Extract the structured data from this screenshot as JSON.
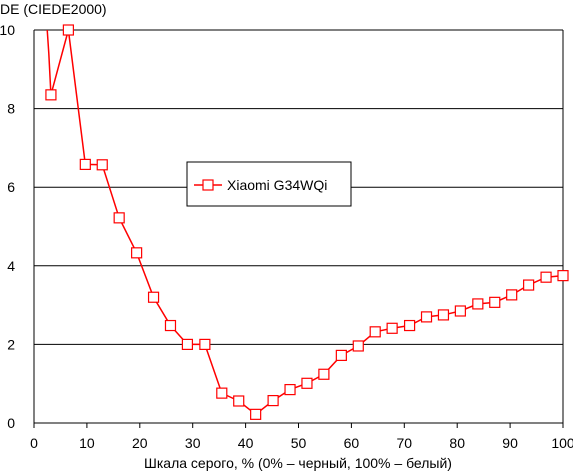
{
  "chart_data": {
    "type": "line",
    "title": "",
    "ylabel": "DE (CIEDE2000)",
    "xlabel": "Шкала серого, % (0% – черный, 100% – белый)",
    "xlim": [
      0,
      100
    ],
    "ylim": [
      0,
      10
    ],
    "xticks": [
      "0",
      "10",
      "20",
      "30",
      "40",
      "50",
      "60",
      "70",
      "80",
      "90",
      "100"
    ],
    "yticks": [
      "0",
      "2",
      "4",
      "6",
      "8",
      "10"
    ],
    "grid": "horizontal",
    "legend_position": "center-left",
    "series": [
      {
        "name": "Xiaomi G34WQi",
        "color": "#ff0000",
        "marker": "square",
        "lead_in": [
          [
            2.5,
            10.0
          ],
          [
            2.8,
            9.4
          ]
        ],
        "x": [
          3.2,
          6.5,
          9.7,
          12.9,
          16.1,
          19.4,
          22.6,
          25.8,
          29.0,
          32.3,
          35.5,
          38.7,
          41.9,
          45.2,
          48.4,
          51.6,
          54.8,
          58.1,
          61.3,
          64.5,
          67.7,
          71.0,
          74.2,
          77.4,
          80.6,
          83.9,
          87.1,
          90.3,
          93.5,
          96.8,
          100.0
        ],
        "y": [
          8.35,
          10.0,
          6.58,
          6.57,
          5.22,
          4.33,
          3.2,
          2.48,
          2.0,
          2.0,
          0.76,
          0.56,
          0.22,
          0.57,
          0.85,
          1.01,
          1.24,
          1.72,
          1.96,
          2.32,
          2.41,
          2.48,
          2.7,
          2.75,
          2.85,
          3.03,
          3.07,
          3.26,
          3.51,
          3.71,
          3.75
        ]
      }
    ]
  }
}
